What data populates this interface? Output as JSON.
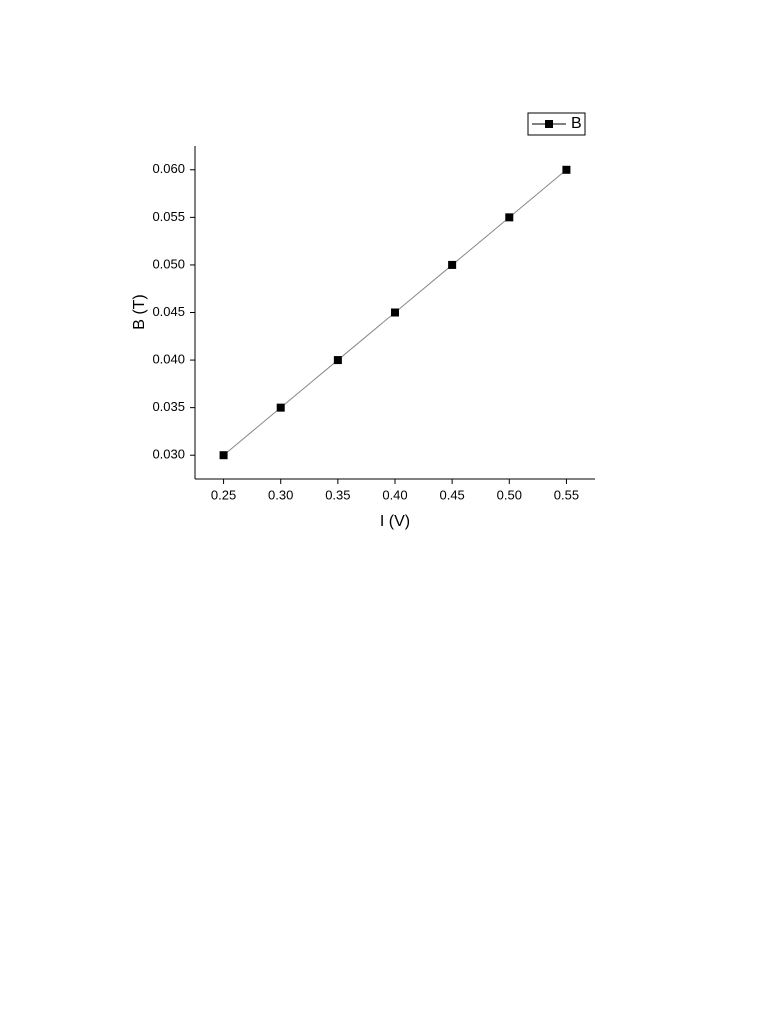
{
  "chart_data": {
    "type": "line",
    "x_label": "I (V)",
    "y_label": "B (T)",
    "x": [
      0.25,
      0.3,
      0.35,
      0.4,
      0.45,
      0.5,
      0.55
    ],
    "series": [
      {
        "name": "B",
        "color": "#000000",
        "values": [
          0.03,
          0.035,
          0.04,
          0.045,
          0.05,
          0.055,
          0.06
        ]
      }
    ],
    "xlim": [
      0.225,
      0.575
    ],
    "xticks": [
      0.25,
      {
        "value": 0.3,
        "label": "0.30"
      },
      0.35,
      {
        "value": 0.4,
        "label": "0.40"
      },
      0.45,
      {
        "value": 0.5,
        "label": "0.50"
      },
      0.55
    ],
    "ylim": [
      0.0275,
      0.0625
    ],
    "yticks": [
      {
        "value": 0.03,
        "label": "0.030"
      },
      {
        "value": 0.035,
        "label": "0.035"
      },
      {
        "value": 0.04,
        "label": "0.040"
      },
      {
        "value": 0.045,
        "label": "0.045"
      },
      {
        "value": 0.05,
        "label": "0.050"
      },
      {
        "value": 0.055,
        "label": "0.055"
      },
      {
        "value": 0.06,
        "label": "0.060"
      }
    ],
    "grid": false,
    "legend": "top-right"
  }
}
